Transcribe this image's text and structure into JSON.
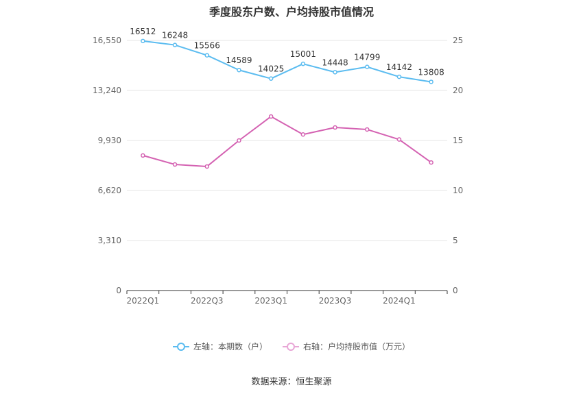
{
  "title": "季度股东户数、户均持股市值情况",
  "source_text": "数据来源：恒生聚源",
  "colors": {
    "left_series": "#5bbcf0",
    "right_series": "#d462b2"
  },
  "chart_data": {
    "type": "line",
    "x": [
      "2022Q1",
      "2022Q2",
      "2022Q3",
      "2022Q4",
      "2023Q1",
      "2023Q2",
      "2023Q3",
      "2023Q4",
      "2024Q1",
      "2024Q2"
    ],
    "x_tick_labels": [
      "2022Q1",
      "2022Q3",
      "2023Q1",
      "2023Q3",
      "2024Q1"
    ],
    "series": [
      {
        "name": "左轴：本期数（户）",
        "axis": "left",
        "values": [
          16512,
          16248,
          15566,
          14589,
          14025,
          15001,
          14448,
          14799,
          14142,
          13808
        ]
      },
      {
        "name": "右轴：户均持股市值（万元）",
        "axis": "right",
        "values": [
          13.5,
          12.6,
          12.4,
          15.0,
          17.4,
          15.6,
          16.3,
          16.1,
          15.1,
          12.8
        ]
      }
    ],
    "left_axis": {
      "ylim": [
        0,
        16550
      ],
      "ticks": [
        0,
        3310,
        6620,
        9930,
        13240,
        16550
      ],
      "tick_labels": [
        "0",
        "3,310",
        "6,620",
        "9,930",
        "13,240",
        "16,550"
      ]
    },
    "right_axis": {
      "ylim": [
        0,
        25
      ],
      "ticks": [
        0,
        5,
        10,
        15,
        20,
        25
      ],
      "tick_labels": [
        "0",
        "5",
        "10",
        "15",
        "20",
        "25"
      ]
    },
    "grid": true,
    "legend_position": "bottom"
  }
}
